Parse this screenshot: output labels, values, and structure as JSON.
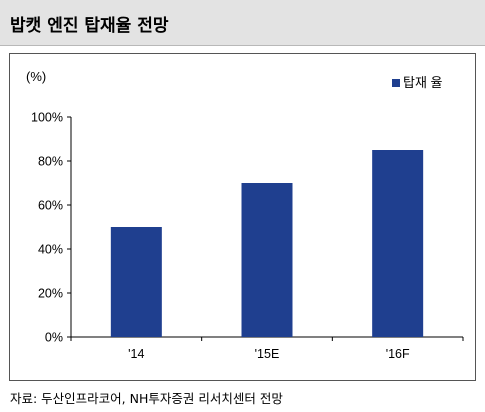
{
  "header": {
    "title": "밥캣 엔진 탑재율 전망"
  },
  "footer": {
    "source": "자료: 두산인프라코어, NH투자증권 리서치센터 전망"
  },
  "colors": {
    "bar": "#1f3f8f",
    "axis": "#000000",
    "title_bg": "#e3e3e3"
  },
  "chart_data": {
    "type": "bar",
    "title": "",
    "unit_label": "(%)",
    "categories": [
      "'14",
      "'15E",
      "'16F"
    ],
    "series": [
      {
        "name": "탑재율",
        "values": [
          50,
          70,
          85
        ]
      }
    ],
    "ylim": [
      0,
      100
    ],
    "yticks": [
      0,
      20,
      40,
      60,
      80,
      100
    ],
    "ytick_labels": [
      "0%",
      "20%",
      "40%",
      "60%",
      "80%",
      "100%"
    ],
    "grid": false,
    "legend_position": "top-right",
    "legend_label": "탑재 율"
  }
}
